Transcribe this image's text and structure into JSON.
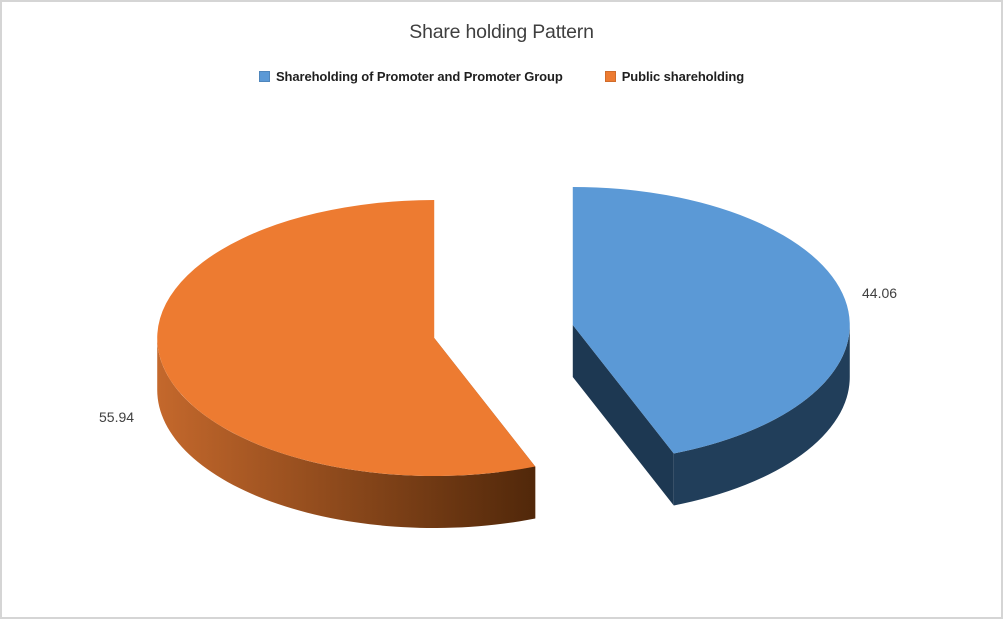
{
  "chart_data": {
    "type": "pie",
    "title": "Share holding Pattern",
    "effect": "3d-exploded",
    "legend_position": "top",
    "start_angle_deg": 0,
    "direction": "clockwise",
    "background": "#FFFFFF",
    "canvas_border_color": "#D5D5D5",
    "slices": [
      {
        "name": "Shareholding of Promoter and Promoter Group",
        "value": 44.06,
        "label": "44.06",
        "color": "#5B99D6",
        "side_color": "#213E5A",
        "radial_side_color": "#1D3852"
      },
      {
        "name": "Public shareholding",
        "value": 55.94,
        "label": "55.94",
        "color": "#ED7B31",
        "side_gradient": [
          "#C4682C",
          "#4E2609"
        ],
        "radial_side_color": "#7B3D12"
      }
    ]
  },
  "text_colors": {
    "title": "#3F3F3F",
    "legend": "#1F1F1F",
    "data_label": "#404040"
  }
}
